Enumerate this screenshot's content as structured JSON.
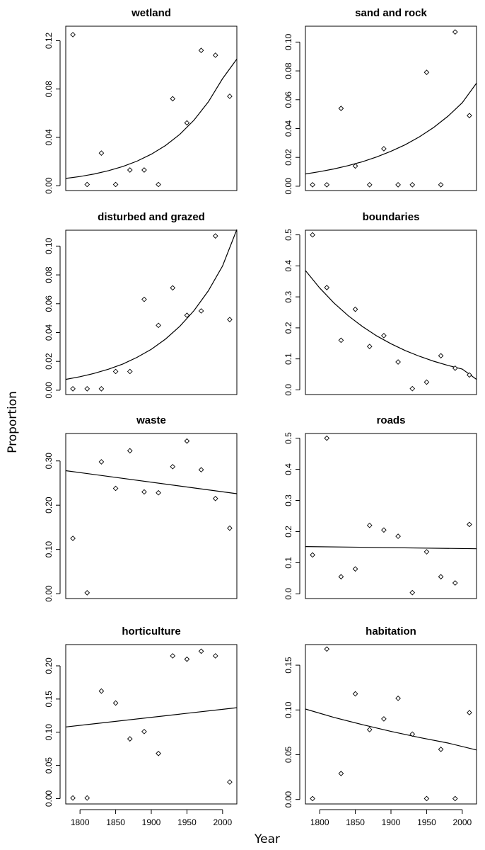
{
  "figure": {
    "ylabel": "Proportion",
    "xlabel": "Year"
  },
  "chart_data": [
    {
      "type": "scatter",
      "title": "wetland",
      "xlim": [
        1780,
        2020
      ],
      "ylim": [
        -0.004,
        0.132
      ],
      "yticks": [
        0,
        0.04,
        0.08,
        0.12
      ],
      "ytick_labels": [
        "0.00",
        "0.04",
        "0.08",
        "0.12"
      ],
      "xticks": [],
      "xtick_labels": [],
      "points": [
        [
          1790,
          0.125
        ],
        [
          1810,
          0.001
        ],
        [
          1830,
          0.027
        ],
        [
          1850,
          0.001
        ],
        [
          1870,
          0.013
        ],
        [
          1890,
          0.013
        ],
        [
          1910,
          0.001
        ],
        [
          1930,
          0.072
        ],
        [
          1950,
          0.052
        ],
        [
          1970,
          0.112
        ],
        [
          1990,
          0.108
        ],
        [
          2010,
          0.074
        ]
      ],
      "curve": [
        [
          1780,
          0.006
        ],
        [
          1800,
          0.0076
        ],
        [
          1820,
          0.0097
        ],
        [
          1840,
          0.0125
        ],
        [
          1860,
          0.0159
        ],
        [
          1880,
          0.0203
        ],
        [
          1900,
          0.0261
        ],
        [
          1920,
          0.0333
        ],
        [
          1940,
          0.0425
        ],
        [
          1960,
          0.0543
        ],
        [
          1980,
          0.0694
        ],
        [
          2000,
          0.0886
        ],
        [
          2020,
          0.1048
        ]
      ]
    },
    {
      "type": "scatter",
      "title": "sand and rock",
      "xlim": [
        1780,
        2020
      ],
      "ylim": [
        -0.003,
        0.111
      ],
      "yticks": [
        0,
        0.02,
        0.04,
        0.06,
        0.08,
        0.1
      ],
      "ytick_labels": [
        "0.00",
        "0.02",
        "0.04",
        "0.06",
        "0.08",
        "0.10"
      ],
      "xticks": [],
      "xtick_labels": [],
      "points": [
        [
          1790,
          0.001
        ],
        [
          1810,
          0.001
        ],
        [
          1830,
          0.054
        ],
        [
          1850,
          0.014
        ],
        [
          1870,
          0.001
        ],
        [
          1890,
          0.026
        ],
        [
          1910,
          0.001
        ],
        [
          1930,
          0.001
        ],
        [
          1950,
          0.079
        ],
        [
          1970,
          0.001
        ],
        [
          1990,
          0.107
        ],
        [
          2010,
          0.049
        ]
      ],
      "curve": [
        [
          1780,
          0.0085
        ],
        [
          1800,
          0.0101
        ],
        [
          1820,
          0.012
        ],
        [
          1840,
          0.0143
        ],
        [
          1860,
          0.017
        ],
        [
          1880,
          0.0203
        ],
        [
          1900,
          0.0242
        ],
        [
          1920,
          0.0288
        ],
        [
          1940,
          0.0343
        ],
        [
          1960,
          0.0408
        ],
        [
          1980,
          0.0486
        ],
        [
          2000,
          0.0579
        ],
        [
          2020,
          0.0715
        ]
      ]
    },
    {
      "type": "scatter",
      "title": "disturbed and grazed",
      "xlim": [
        1780,
        2020
      ],
      "ylim": [
        -0.003,
        0.111
      ],
      "yticks": [
        0,
        0.02,
        0.04,
        0.06,
        0.08,
        0.1
      ],
      "ytick_labels": [
        "0.00",
        "0.02",
        "0.04",
        "0.06",
        "0.08",
        "0.10"
      ],
      "xticks": [],
      "xtick_labels": [],
      "points": [
        [
          1790,
          0.001
        ],
        [
          1810,
          0.001
        ],
        [
          1830,
          0.001
        ],
        [
          1850,
          0.013
        ],
        [
          1870,
          0.013
        ],
        [
          1890,
          0.063
        ],
        [
          1910,
          0.045
        ],
        [
          1930,
          0.071
        ],
        [
          1950,
          0.052
        ],
        [
          1970,
          0.055
        ],
        [
          1990,
          0.107
        ],
        [
          2010,
          0.049
        ]
      ],
      "curve": [
        [
          1780,
          0.0075
        ],
        [
          1800,
          0.0094
        ],
        [
          1820,
          0.0117
        ],
        [
          1840,
          0.0146
        ],
        [
          1860,
          0.0182
        ],
        [
          1880,
          0.0228
        ],
        [
          1900,
          0.0284
        ],
        [
          1920,
          0.0355
        ],
        [
          1940,
          0.0443
        ],
        [
          1960,
          0.0553
        ],
        [
          1980,
          0.069
        ],
        [
          2000,
          0.0862
        ],
        [
          2020,
          0.1115
        ]
      ]
    },
    {
      "type": "scatter",
      "title": "boundaries",
      "xlim": [
        1780,
        2020
      ],
      "ylim": [
        -0.015,
        0.515
      ],
      "yticks": [
        0,
        0.1,
        0.2,
        0.3,
        0.4,
        0.5
      ],
      "ytick_labels": [
        "0.0",
        "0.1",
        "0.2",
        "0.3",
        "0.4",
        "0.5"
      ],
      "xticks": [],
      "xtick_labels": [],
      "points": [
        [
          1790,
          0.5
        ],
        [
          1810,
          0.33
        ],
        [
          1830,
          0.16
        ],
        [
          1850,
          0.26
        ],
        [
          1870,
          0.14
        ],
        [
          1890,
          0.175
        ],
        [
          1910,
          0.09
        ],
        [
          1930,
          0.004
        ],
        [
          1950,
          0.025
        ],
        [
          1970,
          0.11
        ],
        [
          1990,
          0.07
        ],
        [
          2010,
          0.048
        ]
      ],
      "curve": [
        [
          1780,
          0.385
        ],
        [
          1800,
          0.3285
        ],
        [
          1820,
          0.2804
        ],
        [
          1840,
          0.2393
        ],
        [
          1860,
          0.2042
        ],
        [
          1880,
          0.1742
        ],
        [
          1900,
          0.1487
        ],
        [
          1920,
          0.1269
        ],
        [
          1940,
          0.1083
        ],
        [
          1960,
          0.0924
        ],
        [
          1980,
          0.0789
        ],
        [
          2000,
          0.0673
        ],
        [
          2020,
          0.034
        ]
      ]
    },
    {
      "type": "scatter",
      "title": "waste",
      "xlim": [
        1780,
        2020
      ],
      "ylim": [
        -0.011,
        0.362
      ],
      "yticks": [
        0,
        0.1,
        0.2,
        0.3
      ],
      "ytick_labels": [
        "0.00",
        "0.10",
        "0.20",
        "0.30"
      ],
      "xticks": [],
      "xtick_labels": [],
      "points": [
        [
          1790,
          0.125
        ],
        [
          1810,
          0.002
        ],
        [
          1830,
          0.298
        ],
        [
          1850,
          0.238
        ],
        [
          1870,
          0.323
        ],
        [
          1890,
          0.23
        ],
        [
          1910,
          0.228
        ],
        [
          1930,
          0.287
        ],
        [
          1950,
          0.345
        ],
        [
          1970,
          0.28
        ],
        [
          1990,
          0.215
        ],
        [
          2010,
          0.148
        ]
      ],
      "curve": [
        [
          1780,
          0.278
        ],
        [
          2020,
          0.226
        ]
      ]
    },
    {
      "type": "scatter",
      "title": "roads",
      "xlim": [
        1780,
        2020
      ],
      "ylim": [
        -0.015,
        0.515
      ],
      "yticks": [
        0,
        0.1,
        0.2,
        0.3,
        0.4,
        0.5
      ],
      "ytick_labels": [
        "0.0",
        "0.1",
        "0.2",
        "0.3",
        "0.4",
        "0.5"
      ],
      "xticks": [],
      "xtick_labels": [],
      "points": [
        [
          1790,
          0.125
        ],
        [
          1810,
          0.5
        ],
        [
          1830,
          0.055
        ],
        [
          1850,
          0.08
        ],
        [
          1870,
          0.22
        ],
        [
          1890,
          0.205
        ],
        [
          1910,
          0.185
        ],
        [
          1930,
          0.004
        ],
        [
          1950,
          0.135
        ],
        [
          1970,
          0.055
        ],
        [
          1990,
          0.035
        ],
        [
          2010,
          0.223
        ]
      ],
      "curve": [
        [
          1780,
          0.152
        ],
        [
          2020,
          0.145
        ]
      ]
    },
    {
      "type": "scatter",
      "title": "horticulture",
      "xlim": [
        1780,
        2020
      ],
      "ylim": [
        -0.008,
        0.232
      ],
      "yticks": [
        0,
        0.05,
        0.1,
        0.15,
        0.2
      ],
      "ytick_labels": [
        "0.00",
        "0.05",
        "0.10",
        "0.15",
        "0.20"
      ],
      "xticks": [
        1800,
        1850,
        1900,
        1950,
        2000
      ],
      "xtick_labels": [
        "1800",
        "1850",
        "1900",
        "1950",
        "2000"
      ],
      "points": [
        [
          1790,
          0.001
        ],
        [
          1810,
          0.001
        ],
        [
          1830,
          0.162
        ],
        [
          1850,
          0.144
        ],
        [
          1870,
          0.09
        ],
        [
          1890,
          0.101
        ],
        [
          1910,
          0.068
        ],
        [
          1930,
          0.215
        ],
        [
          1950,
          0.21
        ],
        [
          1970,
          0.222
        ],
        [
          1990,
          0.215
        ],
        [
          2010,
          0.025
        ]
      ],
      "curve": [
        [
          1780,
          0.108
        ],
        [
          2020,
          0.137
        ]
      ]
    },
    {
      "type": "scatter",
      "title": "habitation",
      "xlim": [
        1780,
        2020
      ],
      "ylim": [
        -0.005,
        0.173
      ],
      "yticks": [
        0,
        0.05,
        0.1,
        0.15
      ],
      "ytick_labels": [
        "0.00",
        "0.05",
        "0.10",
        "0.15"
      ],
      "xticks": [
        1800,
        1850,
        1900,
        1950,
        2000
      ],
      "xtick_labels": [
        "1800",
        "1850",
        "1900",
        "1950",
        "2000"
      ],
      "points": [
        [
          1790,
          0.001
        ],
        [
          1810,
          0.168
        ],
        [
          1830,
          0.029
        ],
        [
          1850,
          0.118
        ],
        [
          1870,
          0.078
        ],
        [
          1890,
          0.09
        ],
        [
          1910,
          0.113
        ],
        [
          1930,
          0.073
        ],
        [
          1950,
          0.001
        ],
        [
          1970,
          0.056
        ],
        [
          1990,
          0.001
        ],
        [
          2010,
          0.097
        ]
      ],
      "curve": [
        [
          1780,
          0.101
        ],
        [
          1820,
          0.0917
        ],
        [
          1860,
          0.0835
        ],
        [
          1900,
          0.076
        ],
        [
          1940,
          0.0692
        ],
        [
          1980,
          0.063
        ],
        [
          2020,
          0.0553
        ]
      ]
    }
  ]
}
